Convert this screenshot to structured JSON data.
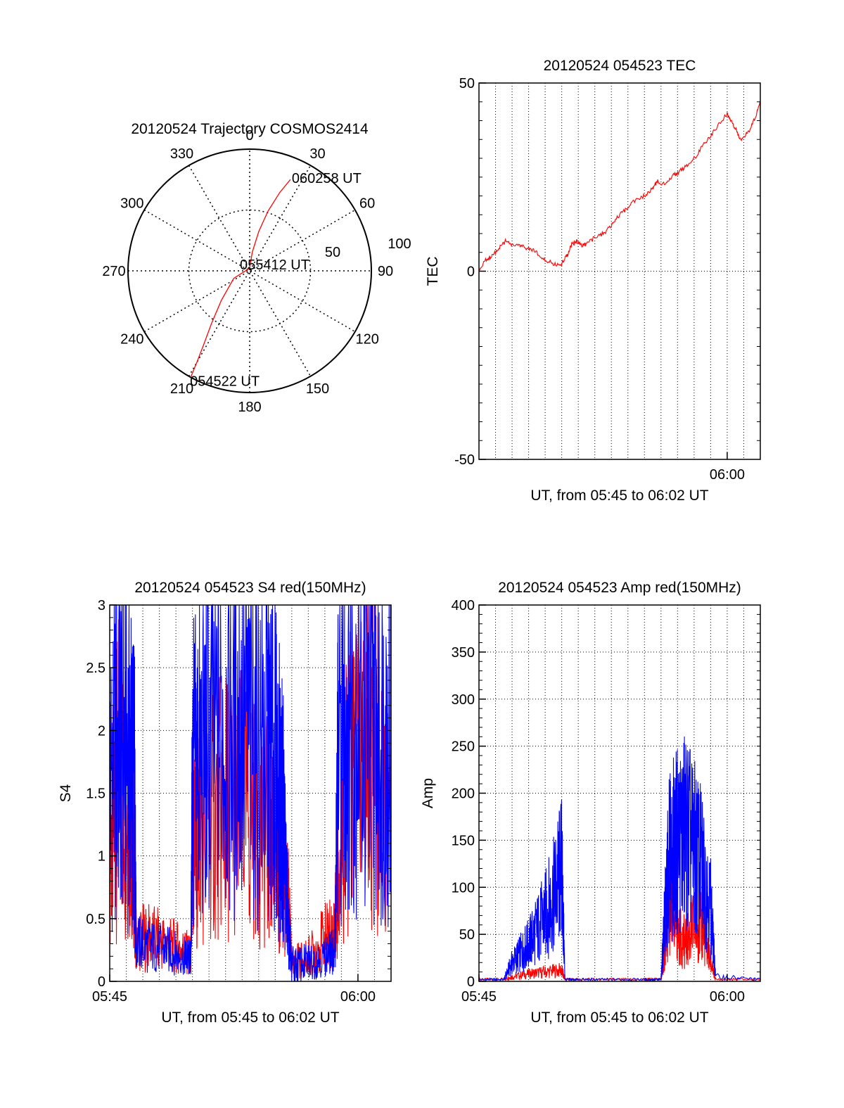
{
  "chart_data": [
    {
      "id": "trajectory",
      "type": "polar",
      "title": "20120524 Trajectory COSMOS2414",
      "azimuth_labels": [
        "0",
        "30",
        "60",
        "90",
        "120",
        "150",
        "180",
        "210",
        "240",
        "270",
        "300",
        "330"
      ],
      "elevation_rings": [
        0,
        50
      ],
      "ring_labels": [
        "100",
        "50"
      ],
      "track": {
        "color": "#ff0000",
        "points": [
          {
            "az": 209,
            "r": 90
          },
          {
            "az": 210,
            "r": 78
          },
          {
            "az": 212,
            "r": 64
          },
          {
            "az": 216,
            "r": 48
          },
          {
            "az": 224,
            "r": 30
          },
          {
            "az": 245,
            "r": 13
          },
          {
            "az": 0,
            "r": 2
          },
          {
            "az": 8,
            "r": 14
          },
          {
            "az": 13,
            "r": 30
          },
          {
            "az": 17,
            "r": 46
          },
          {
            "az": 21,
            "r": 62
          },
          {
            "az": 24,
            "r": 74
          }
        ]
      },
      "track_labels": [
        {
          "text": "060258 UT",
          "az": 24,
          "r": 74
        },
        {
          "text": "055412 UT",
          "az": 0,
          "r": 2
        },
        {
          "text": "054522 UT",
          "az": 209,
          "r": 90
        }
      ]
    },
    {
      "id": "tec",
      "type": "line",
      "title": "20120524 054523 TEC",
      "xlabel": "UT, from 05:45 to 06:02 UT",
      "ylabel": "TEC",
      "xlim": [
        0,
        17
      ],
      "ylim": [
        -50,
        50
      ],
      "x_ticks": [
        {
          "x": 15,
          "label": "06:00"
        }
      ],
      "y_ticks": [
        {
          "y": -50,
          "label": "-50"
        },
        {
          "y": 0,
          "label": "0"
        },
        {
          "y": 50,
          "label": "50"
        }
      ],
      "grid": true,
      "series": [
        {
          "color": "#ff0000",
          "x": [
            0.0,
            0.4,
            0.8,
            1.2,
            1.6,
            2.0,
            2.5,
            3.0,
            3.5,
            4.0,
            4.5,
            5.0,
            5.3,
            5.6,
            5.9,
            6.2,
            6.5,
            7.0,
            7.5,
            8.0,
            8.5,
            9.0,
            9.5,
            10.0,
            10.5,
            10.8,
            11.2,
            11.6,
            12.0,
            12.5,
            13.0,
            13.5,
            14.0,
            14.5,
            15.0,
            15.2,
            15.5,
            15.8,
            16.1,
            16.4,
            16.7,
            17.0
          ],
          "y": [
            0,
            3,
            4,
            6,
            8,
            7,
            7,
            6,
            5,
            3,
            2,
            2,
            4,
            7,
            8,
            7,
            7,
            9,
            10,
            12,
            15,
            17,
            19,
            20,
            22,
            24,
            23,
            25,
            26,
            28,
            30,
            33,
            36,
            39,
            42,
            40,
            38,
            35,
            36,
            38,
            41,
            45
          ]
        }
      ]
    },
    {
      "id": "s4",
      "type": "line",
      "title": "20120524 054523 S4 red(150MHz)",
      "xlabel": "UT, from 05:45 to 06:02 UT",
      "ylabel": "S4",
      "xlim": [
        0,
        17
      ],
      "ylim": [
        0,
        3
      ],
      "x_ticks": [
        {
          "x": 0,
          "label": "05:45"
        },
        {
          "x": 15,
          "label": "06:00"
        }
      ],
      "y_ticks": [
        {
          "y": 0,
          "label": "0"
        },
        {
          "y": 0.5,
          "label": "0.5"
        },
        {
          "y": 1,
          "label": "1"
        },
        {
          "y": 1.5,
          "label": "1.5"
        },
        {
          "y": 2,
          "label": "2"
        },
        {
          "y": 2.5,
          "label": "2.5"
        },
        {
          "y": 3,
          "label": "3"
        }
      ],
      "grid": true,
      "series": [
        {
          "color": "#ff0000",
          "x": [
            0.0,
            0.6,
            1.2,
            1.5,
            1.6,
            2.5,
            3.5,
            4.5,
            4.9,
            5.0,
            5.5,
            6.5,
            7.5,
            8.5,
            9.5,
            10.0,
            10.5,
            10.8,
            11.0,
            12.0,
            13.0,
            13.6,
            13.8,
            14.5,
            15.5,
            16.2,
            17.0
          ],
          "y": [
            1.0,
            1.7,
            1.3,
            1.0,
            0.35,
            0.35,
            0.3,
            0.25,
            0.2,
            1.0,
            1.15,
            1.35,
            1.45,
            1.35,
            1.2,
            1.0,
            0.8,
            0.6,
            0.15,
            0.2,
            0.35,
            0.4,
            1.0,
            1.6,
            2.0,
            1.7,
            1.2
          ]
        },
        {
          "color": "#0000ff",
          "x": [
            0.0,
            0.6,
            1.2,
            1.5,
            1.6,
            2.5,
            3.5,
            4.5,
            4.9,
            5.0,
            5.5,
            6.5,
            7.5,
            8.5,
            9.5,
            10.0,
            10.5,
            10.8,
            11.0,
            12.0,
            13.0,
            13.6,
            13.8,
            14.5,
            15.5,
            16.2,
            17.0
          ],
          "y": [
            1.6,
            2.0,
            1.8,
            1.5,
            0.3,
            0.28,
            0.25,
            0.2,
            0.18,
            1.6,
            1.8,
            2.0,
            2.1,
            2.0,
            1.9,
            1.7,
            1.3,
            0.4,
            0.12,
            0.15,
            0.2,
            0.25,
            1.8,
            2.3,
            2.2,
            2.0,
            1.9
          ]
        }
      ]
    },
    {
      "id": "amp",
      "type": "line",
      "title": "20120524 054523 Amp red(150MHz)",
      "xlabel": "UT, from 05:45 to 06:02 UT",
      "ylabel": "Amp",
      "xlim": [
        0,
        17
      ],
      "ylim": [
        0,
        400
      ],
      "x_ticks": [
        {
          "x": 0,
          "label": "05:45"
        },
        {
          "x": 15,
          "label": "06:00"
        }
      ],
      "y_ticks": [
        {
          "y": 0,
          "label": "0"
        },
        {
          "y": 50,
          "label": "50"
        },
        {
          "y": 100,
          "label": "100"
        },
        {
          "y": 150,
          "label": "150"
        },
        {
          "y": 200,
          "label": "200"
        },
        {
          "y": 250,
          "label": "250"
        },
        {
          "y": 300,
          "label": "300"
        },
        {
          "y": 350,
          "label": "350"
        },
        {
          "y": 400,
          "label": "400"
        }
      ],
      "grid": true,
      "series": [
        {
          "color": "#ff0000",
          "x": [
            0.0,
            1.5,
            2.0,
            3.0,
            4.0,
            5.0,
            5.2,
            6.0,
            8.0,
            10.0,
            11.0,
            11.2,
            11.5,
            12.0,
            12.5,
            13.0,
            13.5,
            14.0,
            14.3,
            17.0
          ],
          "y": [
            2,
            2,
            5,
            8,
            10,
            12,
            2,
            2,
            2,
            2,
            2,
            30,
            80,
            50,
            40,
            60,
            55,
            20,
            2,
            2
          ]
        },
        {
          "color": "#0000ff",
          "x": [
            0.0,
            1.5,
            2.0,
            2.5,
            3.0,
            3.5,
            4.0,
            4.5,
            5.0,
            5.2,
            6.0,
            8.0,
            10.0,
            11.0,
            11.2,
            11.5,
            12.0,
            12.5,
            13.0,
            13.5,
            14.0,
            14.3,
            17.0
          ],
          "y": [
            2,
            2,
            20,
            30,
            40,
            55,
            70,
            90,
            120,
            2,
            2,
            2,
            2,
            2,
            60,
            130,
            150,
            160,
            140,
            120,
            80,
            5,
            2
          ]
        }
      ]
    }
  ]
}
